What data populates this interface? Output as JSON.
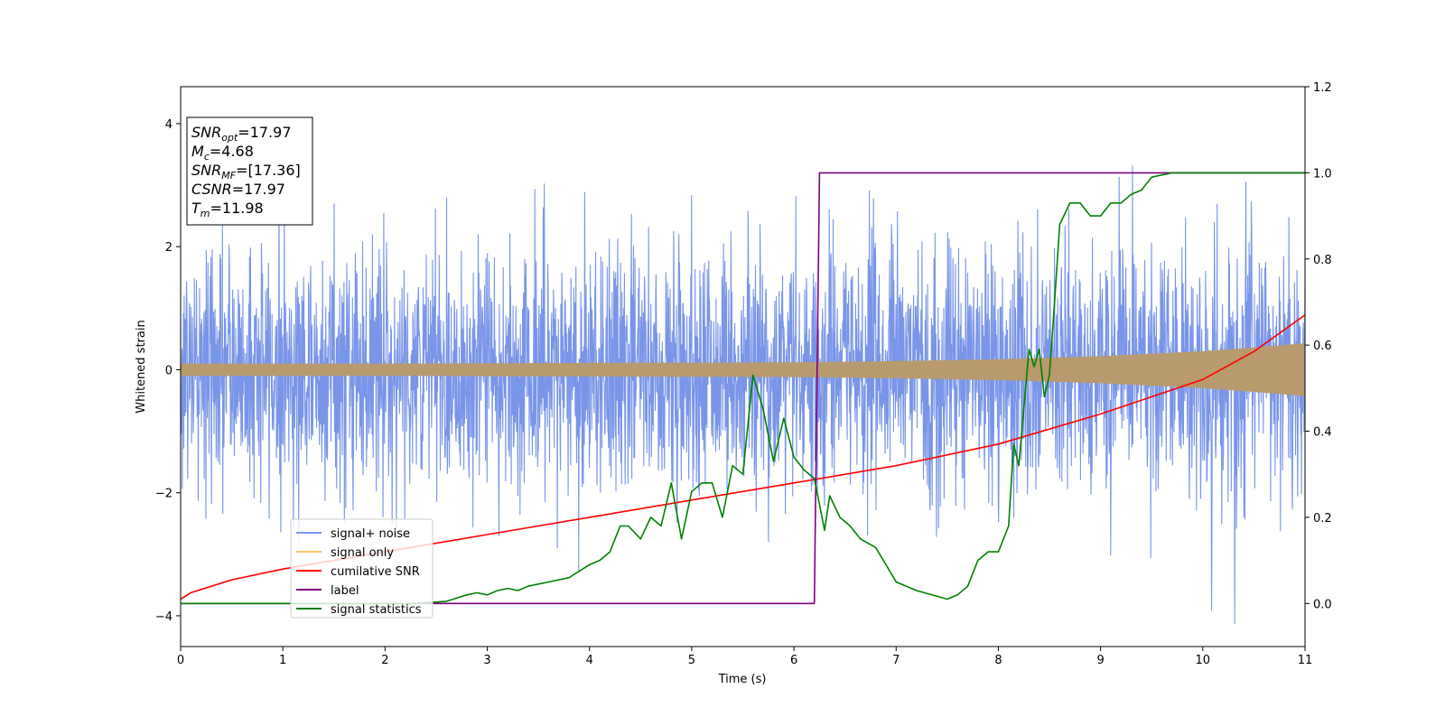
{
  "chart_data": {
    "type": "line",
    "xlabel": "Time (s)",
    "ylabel": "Whitened strain",
    "xlim": [
      0,
      11
    ],
    "ylim": [
      -4.5,
      4.6
    ],
    "y2lim": [
      -0.1,
      1.2
    ],
    "x_ticks": [
      "0",
      "1",
      "2",
      "3",
      "4",
      "5",
      "6",
      "7",
      "8",
      "9",
      "10",
      "11"
    ],
    "y_ticks": [
      "−4",
      "−2",
      "0",
      "2",
      "4"
    ],
    "y2_ticks": [
      "0.0",
      "0.2",
      "0.4",
      "0.6",
      "0.8",
      "1.0",
      "1.2"
    ],
    "grid": false,
    "info_box": [
      {
        "sym": "SNR",
        "sub": "opt",
        "val": "=17.97"
      },
      {
        "sym": "M",
        "sub": "c",
        "val": "=4.68"
      },
      {
        "sym": "SNR",
        "sub": "MF",
        "val": "=[17.36]"
      },
      {
        "sym": "CSNR",
        "sub": "",
        "val": "=17.97"
      },
      {
        "sym": "T",
        "sub": "m",
        "val": "=11.98"
      }
    ],
    "legend": {
      "placement": "lower-left",
      "entries": [
        {
          "name": "signal+ noise",
          "color": "#7895e8"
        },
        {
          "name": "signal only",
          "color": "#f5c56a"
        },
        {
          "name": "cumilative SNR",
          "color": "#ff0000"
        },
        {
          "name": "label",
          "color": "#800080"
        },
        {
          "name": "signal statistics",
          "color": "#008000"
        }
      ]
    },
    "series": [
      {
        "name": "signal+ noise",
        "axis": "left",
        "color": "#7895e8",
        "kind": "noise",
        "std": 1.0,
        "max_abs": 4.15
      },
      {
        "name": "signal only",
        "axis": "left",
        "color": "#b89a6e",
        "envelope": {
          "x": [
            0,
            2,
            4,
            6,
            7,
            8,
            9,
            10,
            10.5,
            11
          ],
          "amp": [
            0.1,
            0.1,
            0.11,
            0.12,
            0.14,
            0.17,
            0.22,
            0.3,
            0.36,
            0.43
          ]
        }
      },
      {
        "name": "cumilative SNR",
        "axis": "right",
        "color": "#ff0000",
        "x": [
          0,
          0.1,
          0.5,
          1,
          2,
          3,
          4,
          5,
          6,
          7,
          8,
          9,
          10,
          10.5,
          11
        ],
        "y": [
          0.01,
          0.025,
          0.055,
          0.08,
          0.12,
          0.16,
          0.2,
          0.24,
          0.28,
          0.32,
          0.37,
          0.44,
          0.52,
          0.585,
          0.67
        ]
      },
      {
        "name": "label",
        "axis": "right",
        "color": "#800080",
        "x": [
          0,
          6.2,
          6.25,
          11
        ],
        "y": [
          0,
          0,
          1,
          1
        ]
      },
      {
        "name": "signal statistics",
        "axis": "right",
        "color": "#008000",
        "x": [
          0,
          0.5,
          1,
          1.5,
          2,
          2.3,
          2.6,
          2.8,
          2.9,
          3.0,
          3.1,
          3.2,
          3.3,
          3.4,
          3.5,
          3.6,
          3.8,
          4.0,
          4.1,
          4.2,
          4.3,
          4.38,
          4.5,
          4.6,
          4.7,
          4.8,
          4.9,
          5.0,
          5.1,
          5.2,
          5.3,
          5.4,
          5.5,
          5.6,
          5.7,
          5.8,
          5.9,
          6.0,
          6.1,
          6.2,
          6.3,
          6.35,
          6.45,
          6.55,
          6.65,
          6.8,
          6.9,
          7.0,
          7.2,
          7.5,
          7.6,
          7.7,
          7.8,
          7.9,
          8.0,
          8.1,
          8.15,
          8.2,
          8.3,
          8.35,
          8.4,
          8.45,
          8.5,
          8.55,
          8.6,
          8.7,
          8.8,
          8.9,
          9.0,
          9.1,
          9.2,
          9.3,
          9.4,
          9.5,
          9.7,
          10.0,
          10.5,
          11
        ],
        "y": [
          0,
          0,
          0,
          0,
          0,
          0,
          0.005,
          0.02,
          0.025,
          0.02,
          0.03,
          0.035,
          0.03,
          0.04,
          0.045,
          0.05,
          0.06,
          0.09,
          0.1,
          0.12,
          0.18,
          0.18,
          0.15,
          0.2,
          0.18,
          0.28,
          0.15,
          0.26,
          0.28,
          0.28,
          0.2,
          0.32,
          0.3,
          0.53,
          0.45,
          0.33,
          0.43,
          0.34,
          0.31,
          0.29,
          0.17,
          0.25,
          0.2,
          0.18,
          0.15,
          0.13,
          0.09,
          0.05,
          0.03,
          0.01,
          0.02,
          0.04,
          0.1,
          0.12,
          0.12,
          0.18,
          0.37,
          0.32,
          0.59,
          0.55,
          0.59,
          0.48,
          0.53,
          0.7,
          0.88,
          0.93,
          0.93,
          0.9,
          0.9,
          0.93,
          0.93,
          0.95,
          0.96,
          0.99,
          1.0,
          1.0,
          1.0,
          1.0
        ]
      }
    ]
  }
}
